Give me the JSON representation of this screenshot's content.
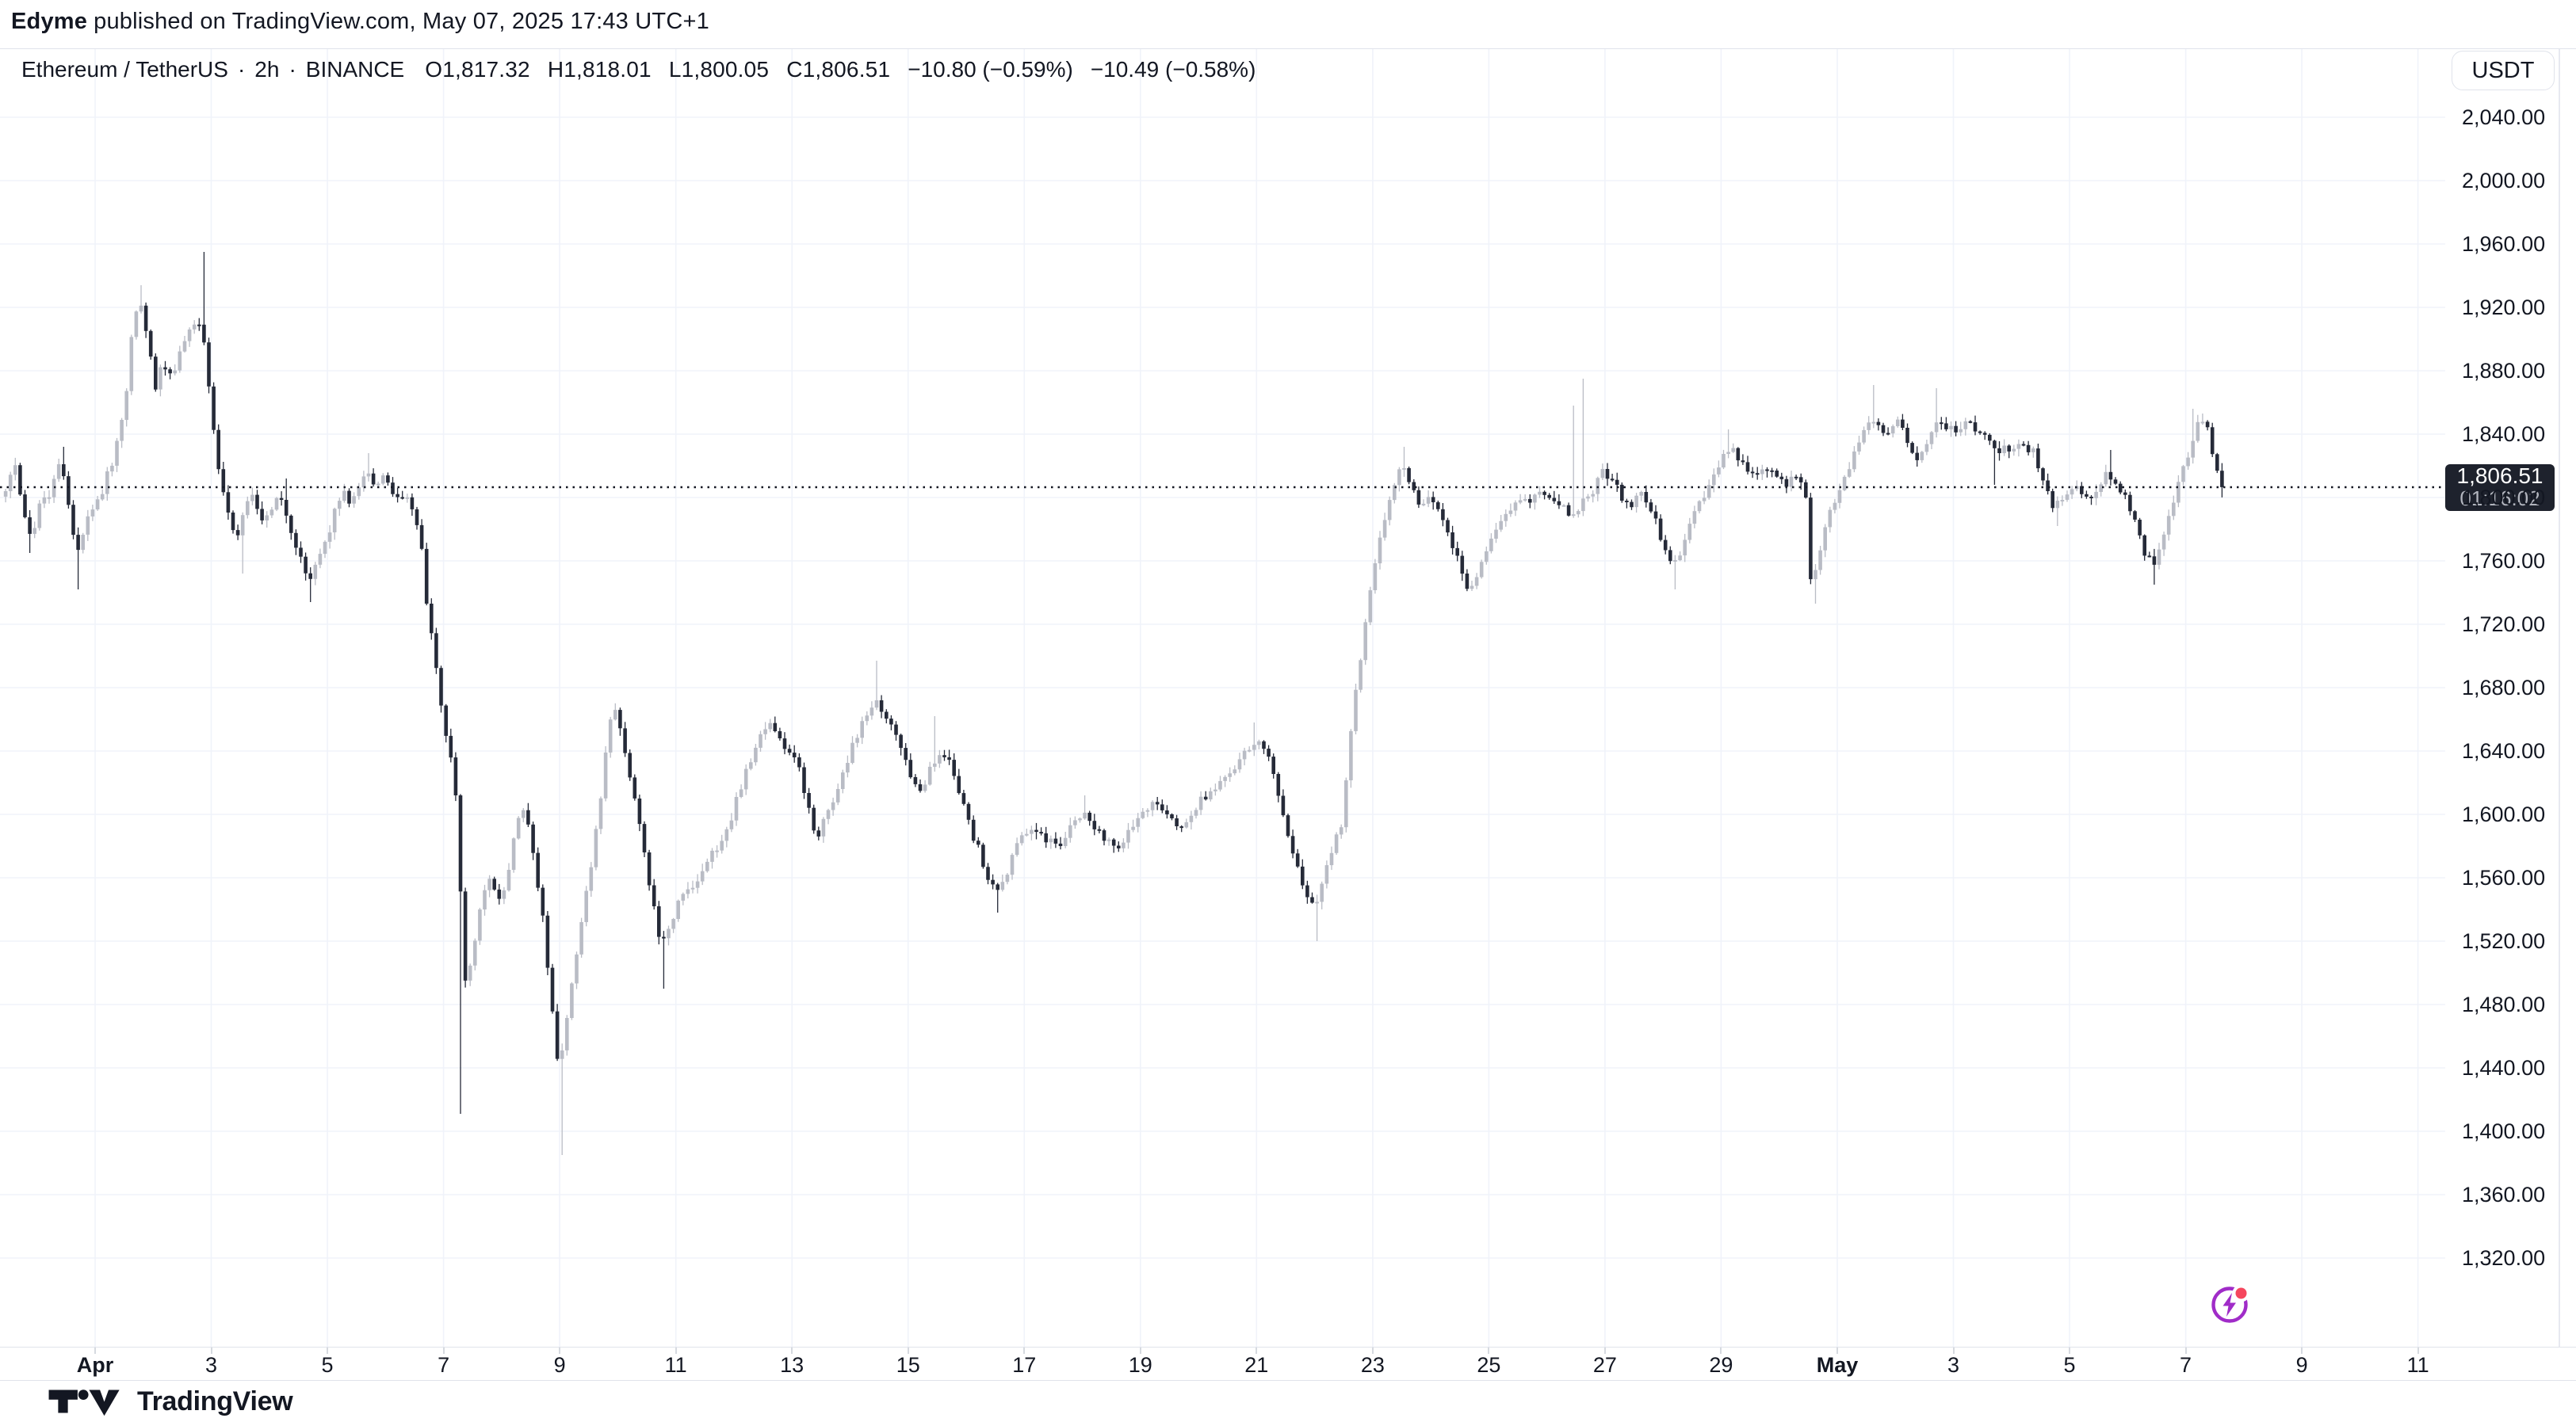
{
  "attribution": {
    "author": "Edyme",
    "text": "published on TradingView.com, May 07, 2025 17:43 UTC+1"
  },
  "legend": {
    "symbol": "Ethereum / TetherUS",
    "separator": "·",
    "interval": "2h",
    "exchange": "BINANCE",
    "ohlc": [
      {
        "label": "O",
        "value": "1,817.32"
      },
      {
        "label": "H",
        "value": "1,818.01"
      },
      {
        "label": "L",
        "value": "1,800.05"
      },
      {
        "label": "C",
        "value": "1,806.51"
      }
    ],
    "changes": [
      "−10.80 (−0.59%)",
      "−10.49 (−0.58%)"
    ]
  },
  "price_scale": {
    "currency_button": "USDT",
    "last_price": "1,806.51",
    "countdown": "01:16:02",
    "labels": [
      {
        "text": "2,040.00",
        "value": 2040
      },
      {
        "text": "2,000.00",
        "value": 2000
      },
      {
        "text": "1,960.00",
        "value": 1960
      },
      {
        "text": "1,920.00",
        "value": 1920
      },
      {
        "text": "1,880.00",
        "value": 1880
      },
      {
        "text": "1,840.00",
        "value": 1840
      },
      {
        "text": "1,800.00",
        "value": 1800
      },
      {
        "text": "1,760.00",
        "value": 1760
      },
      {
        "text": "1,720.00",
        "value": 1720
      },
      {
        "text": "1,680.00",
        "value": 1680
      },
      {
        "text": "1,640.00",
        "value": 1640
      },
      {
        "text": "1,600.00",
        "value": 1600
      },
      {
        "text": "1,560.00",
        "value": 1560
      },
      {
        "text": "1,520.00",
        "value": 1520
      },
      {
        "text": "1,480.00",
        "value": 1480
      },
      {
        "text": "1,440.00",
        "value": 1440
      },
      {
        "text": "1,400.00",
        "value": 1400
      },
      {
        "text": "1,360.00",
        "value": 1360
      },
      {
        "text": "1,320.00",
        "value": 1320
      }
    ]
  },
  "time_scale": {
    "labels": [
      {
        "text": "Apr",
        "t": 0,
        "bold": true
      },
      {
        "text": "3",
        "t": 2
      },
      {
        "text": "5",
        "t": 4
      },
      {
        "text": "7",
        "t": 6
      },
      {
        "text": "9",
        "t": 8
      },
      {
        "text": "11",
        "t": 10
      },
      {
        "text": "13",
        "t": 12
      },
      {
        "text": "15",
        "t": 14
      },
      {
        "text": "17",
        "t": 16
      },
      {
        "text": "19",
        "t": 18
      },
      {
        "text": "21",
        "t": 20
      },
      {
        "text": "23",
        "t": 22
      },
      {
        "text": "25",
        "t": 24
      },
      {
        "text": "27",
        "t": 26
      },
      {
        "text": "29",
        "t": 28
      },
      {
        "text": "May",
        "t": 30,
        "bold": true
      },
      {
        "text": "3",
        "t": 32
      },
      {
        "text": "5",
        "t": 34
      },
      {
        "text": "7",
        "t": 36
      },
      {
        "text": "9",
        "t": 38
      },
      {
        "text": "11",
        "t": 40
      }
    ]
  },
  "brand": {
    "name": "TradingView"
  },
  "icons": {
    "flash_button": "lightning-bolt-in-purple-circle-with-red-notification-dot",
    "brand_logo": "tradingview-tv-mark"
  },
  "chart_data": {
    "type": "candlestick",
    "title": "Ethereum / TetherUS",
    "symbol": "ETHUSDT",
    "exchange": "BINANCE",
    "interval": "2h",
    "currency": "USDT",
    "current_bar": {
      "open": 1817.32,
      "high": 1818.01,
      "low": 1800.05,
      "close": 1806.51,
      "change": "−10.80 (−0.59%)",
      "session_change": "−10.49 (−0.58%)",
      "countdown": "01:16:02"
    },
    "last_price": 1806.51,
    "y_axis": {
      "ticks": [
        1320,
        1360,
        1400,
        1440,
        1480,
        1520,
        1560,
        1600,
        1640,
        1680,
        1720,
        1760,
        1800,
        1840,
        1880,
        1920,
        1960,
        2000,
        2040
      ],
      "step": 40,
      "grid": true
    },
    "x_axis": {
      "start_day_offset": -1.5833,
      "end_day_offset": 36.6667,
      "t0_date": "Apr 1",
      "tick_spacing_days": 2,
      "grid": true
    },
    "price_path": [
      [
        -1.58,
        1802
      ],
      [
        -1.45,
        1810
      ],
      [
        -1.33,
        1818
      ],
      [
        -1.22,
        1796
      ],
      [
        -1.1,
        1780
      ],
      [
        -1.02,
        1778
      ],
      [
        -0.93,
        1792
      ],
      [
        -0.85,
        1802
      ],
      [
        -0.76,
        1796
      ],
      [
        -0.67,
        1812
      ],
      [
        -0.58,
        1822
      ],
      [
        -0.5,
        1814
      ],
      [
        -0.42,
        1798
      ],
      [
        -0.33,
        1778
      ],
      [
        -0.25,
        1764
      ],
      [
        -0.17,
        1776
      ],
      [
        -0.08,
        1786
      ],
      [
        0,
        1792
      ],
      [
        0.12,
        1800
      ],
      [
        0.23,
        1812
      ],
      [
        0.34,
        1822
      ],
      [
        0.46,
        1840
      ],
      [
        0.57,
        1862
      ],
      [
        0.65,
        1898
      ],
      [
        0.74,
        1916
      ],
      [
        0.82,
        1924
      ],
      [
        0.91,
        1906
      ],
      [
        0.99,
        1888
      ],
      [
        1.08,
        1870
      ],
      [
        1.19,
        1884
      ],
      [
        1.3,
        1874
      ],
      [
        1.42,
        1882
      ],
      [
        1.53,
        1893
      ],
      [
        1.64,
        1903
      ],
      [
        1.76,
        1911
      ],
      [
        1.87,
        1909
      ],
      [
        1.95,
        1888
      ],
      [
        2.04,
        1858
      ],
      [
        2.15,
        1822
      ],
      [
        2.27,
        1800
      ],
      [
        2.38,
        1786
      ],
      [
        2.49,
        1774
      ],
      [
        2.61,
        1790
      ],
      [
        2.72,
        1803
      ],
      [
        2.83,
        1796
      ],
      [
        2.94,
        1786
      ],
      [
        3.03,
        1792
      ],
      [
        3.17,
        1800
      ],
      [
        3.31,
        1794
      ],
      [
        3.45,
        1776
      ],
      [
        3.6,
        1758
      ],
      [
        3.74,
        1748
      ],
      [
        3.88,
        1759
      ],
      [
        4.02,
        1772
      ],
      [
        4.16,
        1790
      ],
      [
        4.3,
        1806
      ],
      [
        4.44,
        1797
      ],
      [
        4.58,
        1808
      ],
      [
        4.73,
        1818
      ],
      [
        4.87,
        1806
      ],
      [
        5.01,
        1812
      ],
      [
        5.15,
        1803
      ],
      [
        5.29,
        1797
      ],
      [
        5.43,
        1800
      ],
      [
        5.55,
        1789
      ],
      [
        5.66,
        1768
      ],
      [
        5.77,
        1728
      ],
      [
        5.89,
        1697
      ],
      [
        6.0,
        1667
      ],
      [
        6.11,
        1643
      ],
      [
        6.23,
        1627
      ],
      [
        6.31,
        1572
      ],
      [
        6.4,
        1492
      ],
      [
        6.48,
        1500
      ],
      [
        6.59,
        1522
      ],
      [
        6.71,
        1549
      ],
      [
        6.85,
        1561
      ],
      [
        6.99,
        1547
      ],
      [
        7.13,
        1559
      ],
      [
        7.27,
        1589
      ],
      [
        7.39,
        1603
      ],
      [
        7.5,
        1591
      ],
      [
        7.61,
        1567
      ],
      [
        7.73,
        1541
      ],
      [
        7.84,
        1503
      ],
      [
        7.92,
        1473
      ],
      [
        8.01,
        1440
      ],
      [
        8.06,
        1446
      ],
      [
        8.18,
        1474
      ],
      [
        8.29,
        1504
      ],
      [
        8.43,
        1534
      ],
      [
        8.57,
        1564
      ],
      [
        8.72,
        1604
      ],
      [
        8.86,
        1644
      ],
      [
        8.97,
        1670
      ],
      [
        9.08,
        1657
      ],
      [
        9.22,
        1631
      ],
      [
        9.37,
        1607
      ],
      [
        9.51,
        1575
      ],
      [
        9.65,
        1543
      ],
      [
        9.76,
        1519
      ],
      [
        9.93,
        1529
      ],
      [
        10.1,
        1546
      ],
      [
        10.27,
        1553
      ],
      [
        10.44,
        1561
      ],
      [
        10.61,
        1573
      ],
      [
        10.78,
        1581
      ],
      [
        10.95,
        1593
      ],
      [
        11.09,
        1609
      ],
      [
        11.29,
        1631
      ],
      [
        11.46,
        1649
      ],
      [
        11.63,
        1659
      ],
      [
        11.83,
        1647
      ],
      [
        12.0,
        1639
      ],
      [
        12.14,
        1633
      ],
      [
        12.31,
        1607
      ],
      [
        12.45,
        1585
      ],
      [
        12.62,
        1597
      ],
      [
        12.79,
        1613
      ],
      [
        12.98,
        1633
      ],
      [
        13.18,
        1651
      ],
      [
        13.35,
        1663
      ],
      [
        13.5,
        1671
      ],
      [
        13.7,
        1661
      ],
      [
        13.87,
        1649
      ],
      [
        14.06,
        1627
      ],
      [
        14.26,
        1614
      ],
      [
        14.43,
        1629
      ],
      [
        14.6,
        1641
      ],
      [
        14.77,
        1633
      ],
      [
        14.94,
        1613
      ],
      [
        15.13,
        1590
      ],
      [
        15.33,
        1570
      ],
      [
        15.53,
        1550
      ],
      [
        15.7,
        1559
      ],
      [
        15.9,
        1579
      ],
      [
        16.13,
        1593
      ],
      [
        16.35,
        1587
      ],
      [
        16.61,
        1579
      ],
      [
        16.81,
        1589
      ],
      [
        17.03,
        1601
      ],
      [
        17.26,
        1593
      ],
      [
        17.48,
        1583
      ],
      [
        17.71,
        1579
      ],
      [
        17.88,
        1591
      ],
      [
        18.02,
        1601
      ],
      [
        18.3,
        1609
      ],
      [
        18.5,
        1599
      ],
      [
        18.73,
        1593
      ],
      [
        18.95,
        1603
      ],
      [
        19.18,
        1613
      ],
      [
        19.4,
        1619
      ],
      [
        19.63,
        1629
      ],
      [
        19.8,
        1639
      ],
      [
        20.0,
        1646
      ],
      [
        20.2,
        1641
      ],
      [
        20.37,
        1621
      ],
      [
        20.54,
        1591
      ],
      [
        20.71,
        1569
      ],
      [
        20.88,
        1553
      ],
      [
        21.02,
        1543
      ],
      [
        21.16,
        1553
      ],
      [
        21.33,
        1576
      ],
      [
        21.5,
        1593
      ],
      [
        21.64,
        1641
      ],
      [
        21.78,
        1686
      ],
      [
        21.92,
        1721
      ],
      [
        22.06,
        1756
      ],
      [
        22.23,
        1786
      ],
      [
        22.4,
        1809
      ],
      [
        22.57,
        1819
      ],
      [
        22.69,
        1809
      ],
      [
        22.86,
        1796
      ],
      [
        23.03,
        1801
      ],
      [
        23.2,
        1793
      ],
      [
        23.37,
        1776
      ],
      [
        23.54,
        1756
      ],
      [
        23.68,
        1743
      ],
      [
        23.82,
        1749
      ],
      [
        23.99,
        1766
      ],
      [
        24.16,
        1779
      ],
      [
        24.33,
        1791
      ],
      [
        24.53,
        1799
      ],
      [
        24.72,
        1796
      ],
      [
        24.89,
        1801
      ],
      [
        25.09,
        1801
      ],
      [
        25.29,
        1796
      ],
      [
        25.46,
        1789
      ],
      [
        25.66,
        1796
      ],
      [
        25.85,
        1806
      ],
      [
        26.0,
        1816
      ],
      [
        26.14,
        1813
      ],
      [
        26.31,
        1801
      ],
      [
        26.51,
        1796
      ],
      [
        26.7,
        1803
      ],
      [
        26.87,
        1789
      ],
      [
        27.04,
        1771
      ],
      [
        27.19,
        1757
      ],
      [
        27.35,
        1767
      ],
      [
        27.55,
        1789
      ],
      [
        27.78,
        1801
      ],
      [
        28.0,
        1819
      ],
      [
        28.12,
        1829
      ],
      [
        28.2,
        1831
      ],
      [
        28.35,
        1825
      ],
      [
        28.52,
        1813
      ],
      [
        28.69,
        1816
      ],
      [
        28.86,
        1819
      ],
      [
        29.03,
        1811
      ],
      [
        29.19,
        1809
      ],
      [
        29.36,
        1813
      ],
      [
        29.5,
        1802
      ],
      [
        29.59,
        1742
      ],
      [
        29.73,
        1764
      ],
      [
        29.87,
        1786
      ],
      [
        30.04,
        1801
      ],
      [
        30.18,
        1813
      ],
      [
        30.32,
        1827
      ],
      [
        30.49,
        1841
      ],
      [
        30.63,
        1852
      ],
      [
        30.77,
        1846
      ],
      [
        30.92,
        1839
      ],
      [
        31.06,
        1848
      ],
      [
        31.23,
        1838
      ],
      [
        31.4,
        1820
      ],
      [
        31.6,
        1835
      ],
      [
        31.79,
        1848
      ],
      [
        32.02,
        1843
      ],
      [
        32.3,
        1846
      ],
      [
        32.58,
        1838
      ],
      [
        32.87,
        1830
      ],
      [
        33.15,
        1834
      ],
      [
        33.43,
        1828
      ],
      [
        33.6,
        1810
      ],
      [
        33.77,
        1793
      ],
      [
        33.94,
        1800
      ],
      [
        34.14,
        1806
      ],
      [
        34.42,
        1800
      ],
      [
        34.63,
        1814
      ],
      [
        34.8,
        1812
      ],
      [
        34.97,
        1803
      ],
      [
        35.13,
        1790
      ],
      [
        35.33,
        1765
      ],
      [
        35.5,
        1757
      ],
      [
        35.69,
        1782
      ],
      [
        35.92,
        1808
      ],
      [
        36.12,
        1832
      ],
      [
        36.29,
        1849
      ],
      [
        36.42,
        1843
      ],
      [
        36.58,
        1817.32
      ],
      [
        36.667,
        1806.51
      ]
    ],
    "spike_wicks": [
      {
        "t": -1.1,
        "dir": "low",
        "price": 1765
      },
      {
        "t": -0.58,
        "dir": "high",
        "price": 1832
      },
      {
        "t": -0.25,
        "dir": "low",
        "price": 1742
      },
      {
        "t": 0.82,
        "dir": "high",
        "price": 1934
      },
      {
        "t": 1.87,
        "dir": "high",
        "price": 1955
      },
      {
        "t": 2.55,
        "dir": "low",
        "price": 1752
      },
      {
        "t": 3.31,
        "dir": "high",
        "price": 1812
      },
      {
        "t": 3.74,
        "dir": "low",
        "price": 1734
      },
      {
        "t": 4.73,
        "dir": "high",
        "price": 1828
      },
      {
        "t": 6.31,
        "dir": "low",
        "price": 1411
      },
      {
        "t": 8.01,
        "dir": "low",
        "price": 1385
      },
      {
        "t": 9.76,
        "dir": "low",
        "price": 1490
      },
      {
        "t": 13.5,
        "dir": "high",
        "price": 1697
      },
      {
        "t": 14.5,
        "dir": "high",
        "price": 1662
      },
      {
        "t": 15.53,
        "dir": "low",
        "price": 1538
      },
      {
        "t": 17.03,
        "dir": "high",
        "price": 1612
      },
      {
        "t": 20.0,
        "dir": "high",
        "price": 1658
      },
      {
        "t": 21.02,
        "dir": "low",
        "price": 1520
      },
      {
        "t": 22.57,
        "dir": "high",
        "price": 1832
      },
      {
        "t": 25.5,
        "dir": "high",
        "price": 1858
      },
      {
        "t": 25.65,
        "dir": "high",
        "price": 1875
      },
      {
        "t": 27.19,
        "dir": "low",
        "price": 1742
      },
      {
        "t": 28.12,
        "dir": "high",
        "price": 1843
      },
      {
        "t": 29.59,
        "dir": "low",
        "price": 1733
      },
      {
        "t": 30.63,
        "dir": "high",
        "price": 1871
      },
      {
        "t": 31.7,
        "dir": "high",
        "price": 1869
      },
      {
        "t": 32.7,
        "dir": "low",
        "price": 1808
      },
      {
        "t": 33.77,
        "dir": "low",
        "price": 1782
      },
      {
        "t": 34.7,
        "dir": "high",
        "price": 1830
      },
      {
        "t": 35.45,
        "dir": "low",
        "price": 1745
      },
      {
        "t": 36.12,
        "dir": "high",
        "price": 1856
      },
      {
        "t": 36.29,
        "dir": "high",
        "price": 1853
      },
      {
        "t": 36.62,
        "dir": "high",
        "price": 1818.01
      },
      {
        "t": 36.62,
        "dir": "low",
        "price": 1800.05
      }
    ],
    "colors": {
      "up_candle": "#B9BCC5",
      "down_candle": "#252A38",
      "grid": "#F0F3FA",
      "text": "#131722",
      "border": "#E0E3EB",
      "last_price_line": "#131722",
      "badge_bg": "#1E222D",
      "badge_secondary_text": "#B2B5BE",
      "flash_purple": "#A02CC8",
      "flash_red": "#F5465D"
    }
  }
}
